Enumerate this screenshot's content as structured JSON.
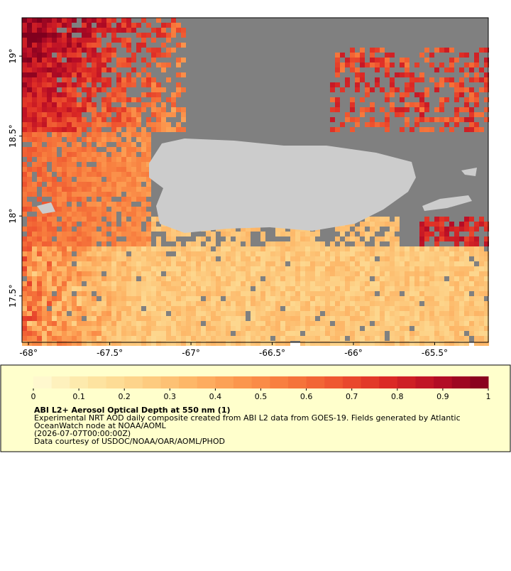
{
  "chart_data": {
    "type": "map",
    "xlim": [
      -68.04,
      -65.17
    ],
    "ylim": [
      17.21,
      19.24
    ],
    "xticks": [
      {
        "value": -68,
        "label": "-68°"
      },
      {
        "value": -67.5,
        "label": "-67.5°"
      },
      {
        "value": -67,
        "label": "-67°"
      },
      {
        "value": -66.5,
        "label": "-66.5°"
      },
      {
        "value": -66,
        "label": "-66°"
      },
      {
        "value": -65.5,
        "label": "-65.5°"
      }
    ],
    "yticks": [
      {
        "value": 17.5,
        "label": "17.5°"
      },
      {
        "value": 18,
        "label": "18°"
      },
      {
        "value": 18.5,
        "label": "18.5°"
      },
      {
        "value": 19,
        "label": "19°"
      }
    ],
    "clim": [
      0,
      1
    ],
    "cticks": [
      0,
      0.1,
      0.2,
      0.3,
      0.4,
      0.5,
      0.6,
      0.7,
      0.8,
      0.9,
      1
    ],
    "colorscale": [
      "#fffbd6",
      "#fde8a8",
      "#fdd48a",
      "#fdb96a",
      "#fc9a50",
      "#f77b3d",
      "#ee5530",
      "#dc2a25",
      "#b80d26",
      "#80001e"
    ],
    "title": "ABI L2+ Aerosol Optical Depth at 550 nm (1)",
    "description": [
      "Experimental NRT AOD daily composite created from ABI L2 data from GOES-19. Fields generated by Atlantic",
      "OceanWatch node at NOAA/AOML",
      "(2026-07-07T00:00:00Z)",
      "Data courtesy of USDOC/NOAA/OAR/AOML/PHOD"
    ]
  }
}
